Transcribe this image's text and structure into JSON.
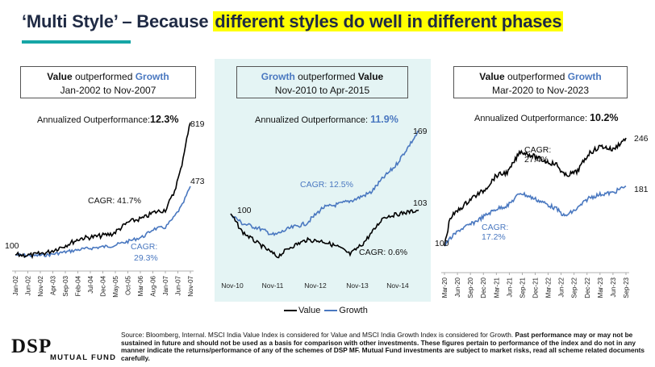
{
  "title": {
    "prefix": "‘Multi Style’ – Because ",
    "highlight": "different styles do well in different phases"
  },
  "colors": {
    "value": "#000000",
    "growth": "#4a78c0",
    "accent": "#16a6a6",
    "highlight": "#ffff00"
  },
  "legend": {
    "value": "Value",
    "growth": "Growth"
  },
  "source": {
    "plain": "Source: Bloomberg, Internal. MSCI India Value Index is considered for Value and MSCI India Growth Index is considered for Growth. ",
    "bold": "Past performance may or may not be sustained in future and should not be used as a basis for comparison with other investments. These figures pertain to performance of the index and do not in any manner indicate the returns/performance of any of the schemes of DSP MF. Mutual Fund investments are subject to market risks, read all scheme related documents carefully."
  },
  "logo": {
    "brand": "DSP",
    "tagline": "MUTUAL FUND"
  },
  "chart_data": [
    {
      "type": "line",
      "header": {
        "winner": "Value",
        "text": " outperformed ",
        "loser": "Growth",
        "period": "Jan-2002 to Nov-2007"
      },
      "annotation": {
        "label": "Annualized Outperformance:",
        "value": "12.3%"
      },
      "x_ticks": [
        "Jan-02",
        "Jun-02",
        "Nov-02",
        "Apr-03",
        "Sep-03",
        "Feb-04",
        "Jul-04",
        "Dec-04",
        "May-05",
        "Oct-05",
        "Mar-06",
        "Aug-06",
        "Jan-07",
        "Jun-07",
        "Nov-07"
      ],
      "start_label": "100",
      "ylim": [
        60,
        900
      ],
      "series": [
        {
          "name": "Value",
          "end_label": "819",
          "cagr_label": "CAGR: 41.7%",
          "end_value": 819
        },
        {
          "name": "Growth",
          "end_label": "473",
          "cagr_label": "CAGR: 29.3%",
          "end_value": 473
        }
      ]
    },
    {
      "type": "line",
      "header": {
        "winner": "Growth",
        "text": " outperformed ",
        "loser": "Value",
        "period": "Nov-2010 to Apr-2015"
      },
      "annotation": {
        "label": "Annualized Outperformance: ",
        "value": "11.9%"
      },
      "x_ticks": [
        "Nov-10",
        "Nov-11",
        "Nov-12",
        "Nov-13",
        "Nov-14"
      ],
      "start_label": "100",
      "ylim": [
        50,
        190
      ],
      "series": [
        {
          "name": "Growth",
          "end_label": "169",
          "cagr_label": "CAGR: 12.5%",
          "end_value": 169
        },
        {
          "name": "Value",
          "end_label": "103",
          "cagr_label": "CAGR: 0.6%",
          "end_value": 103
        }
      ]
    },
    {
      "type": "line",
      "header": {
        "winner": "Value",
        "text": " outperformed ",
        "loser": "Growth",
        "period": "Mar-2020 to Nov-2023"
      },
      "annotation": {
        "label": "Annualized Outperformance: ",
        "value": "10.2%"
      },
      "x_ticks": [
        "Mar-20",
        "Jun-20",
        "Sep-20",
        "Dec-20",
        "Mar-21",
        "Jun-21",
        "Sep-21",
        "Dec-21",
        "Mar-22",
        "Jun-22",
        "Sep-22",
        "Dec-22",
        "Mar-23",
        "Jun-23",
        "Sep-23"
      ],
      "start_label": "100",
      "ylim": [
        80,
        260
      ],
      "series": [
        {
          "name": "Value",
          "end_label": "246",
          "cagr_label": "CAGR:\n27.4%",
          "end_value": 246
        },
        {
          "name": "Growth",
          "end_label": "181",
          "cagr_label": "CAGR:\n17.2%",
          "end_value": 181
        }
      ]
    }
  ]
}
